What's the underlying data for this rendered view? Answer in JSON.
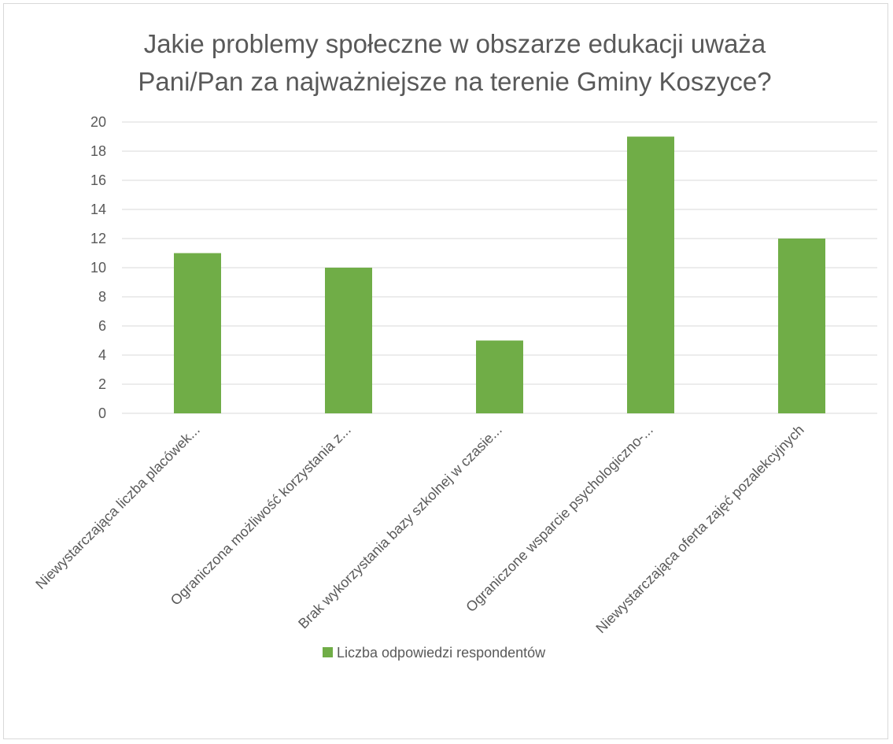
{
  "chart_data": {
    "type": "bar",
    "title_lines": [
      "Jakie problemy społeczne w obszarze edukacji uważa",
      "Pani/Pan za najważniejsze na terenie Gminy Koszyce?"
    ],
    "categories": [
      "Niewystarczająca liczba placówek...",
      "Ograniczona możliwość korzystania z...",
      "Brak wykorzystania bazy szkolnej w czasie...",
      "Ograniczone wsparcie psychologiczno-...",
      "Niewystarczająca oferta zajęć pozalekcyjnych"
    ],
    "series": [
      {
        "name": "Liczba odpowiedzi respondentów",
        "values": [
          11,
          10,
          5,
          19,
          12
        ]
      }
    ],
    "ylim": [
      0,
      20
    ],
    "yticks": [
      "0",
      "2",
      "4",
      "6",
      "8",
      "10",
      "12",
      "14",
      "16",
      "18",
      "20"
    ],
    "grid": true,
    "legend_position": "bottom",
    "colors": {
      "bar": "#70ad47",
      "grid": "#d9d9d9",
      "text": "#595959"
    }
  }
}
